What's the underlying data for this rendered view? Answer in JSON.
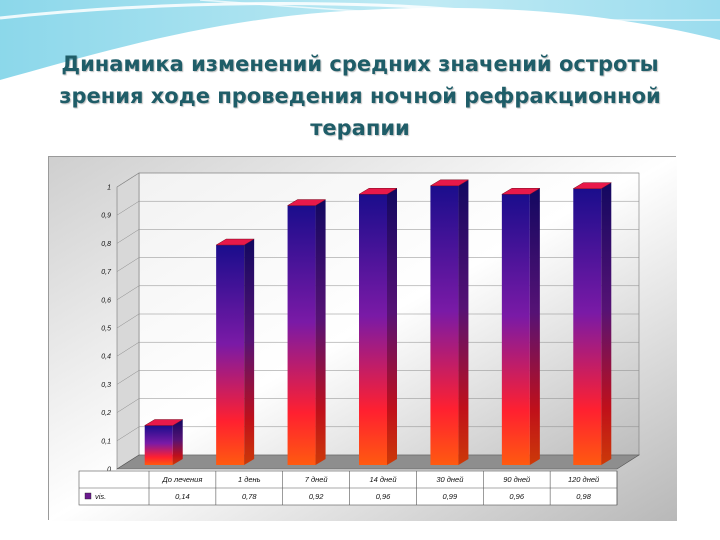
{
  "slide": {
    "title": "Динамика изменений средних значений остроты зрения ходе проведения ночной рефракционной терапии"
  },
  "colors": {
    "title": "#1f5d68",
    "bar_top": "#1a0d8c",
    "bar_mid": "#8a1a9c",
    "bar_bottom": "#ff2a10",
    "bar_cap": "#e8194a"
  },
  "chart_data": {
    "type": "bar",
    "categories": [
      "До лечения",
      "1 день",
      "7 дней",
      "14 дней",
      "30 дней",
      "90 дней",
      "120 дней"
    ],
    "series": [
      {
        "name": "vis.",
        "values": [
          0.14,
          0.78,
          0.92,
          0.96,
          0.99,
          0.96,
          0.98
        ]
      }
    ],
    "value_labels": [
      "0,14",
      "0,78",
      "0,92",
      "0,96",
      "0,99",
      "0,96",
      "0,98"
    ],
    "y_ticks": [
      0,
      0.1,
      0.2,
      0.3,
      0.4,
      0.5,
      0.6,
      0.7,
      0.8,
      0.9,
      1
    ],
    "y_tick_labels": [
      "0",
      "0,1",
      "0,2",
      "0,3",
      "0,4",
      "0,5",
      "0,6",
      "0,7",
      "0,8",
      "0,9",
      "1"
    ],
    "ylim": [
      0,
      1
    ],
    "grid": true,
    "legend": "data-table-bottom",
    "three_d": true
  }
}
